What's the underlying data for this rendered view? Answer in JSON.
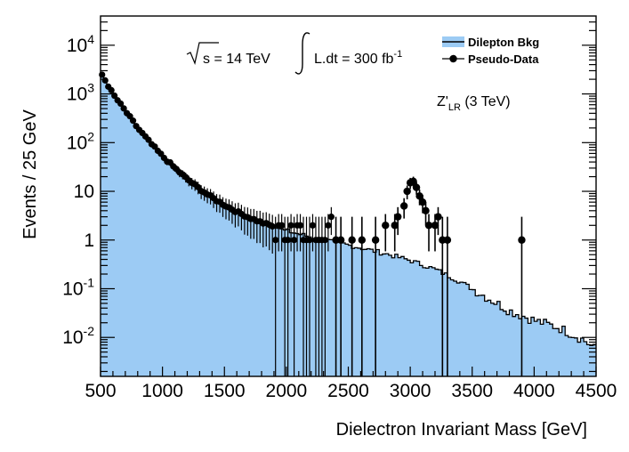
{
  "chart_data": {
    "type": "histogram-with-points",
    "xlabel": "Dielectron Invariant Mass [GeV]",
    "ylabel": "Events / 25 GeV",
    "xlim": [
      500,
      4500
    ],
    "ylim_log10": [
      -2.8,
      4.6
    ],
    "y_scale": "log",
    "bin_width": 25,
    "x_ticks": [
      {
        "value": 500,
        "label": "500"
      },
      {
        "value": 1000,
        "label": "1000"
      },
      {
        "value": 1500,
        "label": "1500"
      },
      {
        "value": 2000,
        "label": "2000"
      },
      {
        "value": 2500,
        "label": "2500"
      },
      {
        "value": 3000,
        "label": "3000"
      },
      {
        "value": 3500,
        "label": "3500"
      },
      {
        "value": 4000,
        "label": "4000"
      },
      {
        "value": 4500,
        "label": "4500"
      }
    ],
    "y_ticks": [
      {
        "exp": -2,
        "base": "10",
        "sup": "-2"
      },
      {
        "exp": -1,
        "base": "10",
        "sup": "-1"
      },
      {
        "exp": 0,
        "base": "1",
        "sup": ""
      },
      {
        "exp": 1,
        "base": "10",
        "sup": ""
      },
      {
        "exp": 2,
        "base": "10",
        "sup": "2"
      },
      {
        "exp": 3,
        "base": "10",
        "sup": "3"
      },
      {
        "exp": 4,
        "base": "10",
        "sup": "4"
      }
    ],
    "annotations": {
      "sqrt_s": "s = 14 TeV",
      "lumi_prefix": "L.dt = 300 fb",
      "lumi_sup": "-1",
      "model_main": "Z'",
      "model_sub": "LR",
      "model_suffix": " (3 TeV)"
    },
    "legend": {
      "position": "top-right",
      "entries": [
        {
          "name": "Dilepton Bkg",
          "kind": "filled-box"
        },
        {
          "name": "Pseudo-Data",
          "kind": "marker"
        }
      ]
    },
    "background": {
      "name": "Dilepton Bkg",
      "fill": "#9ccbf4",
      "model_points": [
        [
          500,
          3.45
        ],
        [
          600,
          3.0
        ],
        [
          700,
          2.65
        ],
        [
          800,
          2.3
        ],
        [
          900,
          2.0
        ],
        [
          1000,
          1.72
        ],
        [
          1100,
          1.48
        ],
        [
          1200,
          1.25
        ],
        [
          1300,
          1.05
        ],
        [
          1400,
          0.87
        ],
        [
          1500,
          0.72
        ],
        [
          1600,
          0.58
        ],
        [
          1700,
          0.46
        ],
        [
          1800,
          0.36
        ],
        [
          2000,
          0.19
        ],
        [
          2200,
          0.06
        ],
        [
          2400,
          -0.05
        ],
        [
          2600,
          -0.16
        ],
        [
          2800,
          -0.28
        ],
        [
          3000,
          -0.42
        ],
        [
          3200,
          -0.6
        ],
        [
          3400,
          -0.85
        ],
        [
          3600,
          -1.15
        ],
        [
          3800,
          -1.45
        ],
        [
          4000,
          -1.65
        ],
        [
          4200,
          -1.8
        ],
        [
          4400,
          -2.05
        ],
        [
          4500,
          -2.25
        ]
      ]
    },
    "pseudo_data": {
      "name": "Pseudo-Data",
      "color": "#000000",
      "points": [
        [
          2400,
          1
        ],
        [
          2440,
          1
        ],
        [
          2530,
          1
        ],
        [
          2610,
          1
        ],
        [
          2720,
          1
        ],
        [
          2800,
          2
        ],
        [
          2875,
          2
        ],
        [
          2900,
          3
        ],
        [
          2950,
          5
        ],
        [
          2975,
          10
        ],
        [
          3000,
          15
        ],
        [
          3025,
          16
        ],
        [
          3050,
          12
        ],
        [
          3075,
          8
        ],
        [
          3100,
          6
        ],
        [
          3125,
          4
        ],
        [
          3150,
          2
        ],
        [
          3200,
          2
        ],
        [
          3225,
          3
        ],
        [
          3260,
          1
        ],
        [
          3300,
          1
        ],
        [
          3900,
          1
        ]
      ]
    }
  }
}
